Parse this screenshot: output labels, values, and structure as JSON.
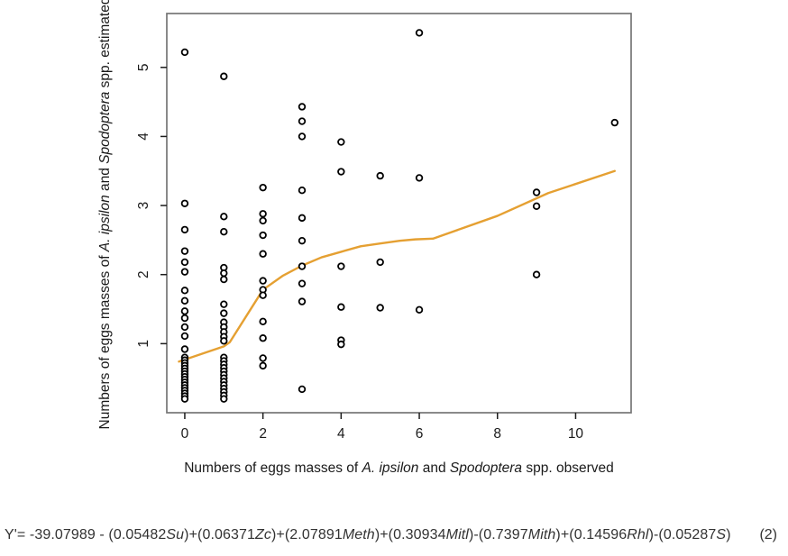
{
  "figure": {
    "background": "#ffffff",
    "frame_color": "#757575",
    "tick_color": "#1c1c1c",
    "text_color": "#1a1a1a",
    "point_color": "#000000",
    "point_fill": "#ffffff",
    "line_color": "#E5A032",
    "formula_color": "#333333"
  },
  "chart_data": {
    "type": "scatter",
    "title": "",
    "xlabel_segments": [
      {
        "text": "Numbers of eggs masses of ",
        "italic": false
      },
      {
        "text": "A. ipsilon",
        "italic": true
      },
      {
        "text": " and ",
        "italic": false
      },
      {
        "text": "Spodoptera",
        "italic": true
      },
      {
        "text": " spp. observed",
        "italic": false
      }
    ],
    "ylabel_segments": [
      {
        "text": "Numbers of eggs masses of ",
        "italic": false
      },
      {
        "text": "A. ipsilon",
        "italic": true
      },
      {
        "text": " and ",
        "italic": false
      },
      {
        "text": "Spodoptera",
        "italic": true
      },
      {
        "text": " spp. estimated",
        "italic": false
      }
    ],
    "x_ticks": [
      0,
      2,
      4,
      6,
      8,
      10
    ],
    "y_ticks": [
      1,
      2,
      3,
      4,
      5
    ],
    "xlim": [
      -0.46,
      11.42
    ],
    "ylim": [
      0,
      5.78
    ],
    "grid": false,
    "legend": "none",
    "points": [
      [
        0,
        5.22
      ],
      [
        0,
        3.03
      ],
      [
        0,
        2.65
      ],
      [
        0,
        2.34
      ],
      [
        0,
        2.18
      ],
      [
        0,
        2.04
      ],
      [
        0,
        1.77
      ],
      [
        0,
        1.62
      ],
      [
        0,
        1.47
      ],
      [
        0,
        1.37
      ],
      [
        0,
        1.24
      ],
      [
        0,
        1.11
      ],
      [
        0,
        0.92
      ],
      [
        0,
        0.8
      ],
      [
        0,
        0.76
      ],
      [
        0,
        0.72
      ],
      [
        0,
        0.68
      ],
      [
        0,
        0.64
      ],
      [
        0,
        0.6
      ],
      [
        0,
        0.56
      ],
      [
        0,
        0.52
      ],
      [
        0,
        0.48
      ],
      [
        0,
        0.44
      ],
      [
        0,
        0.4
      ],
      [
        0,
        0.36
      ],
      [
        0,
        0.32
      ],
      [
        0,
        0.28
      ],
      [
        0,
        0.24
      ],
      [
        0,
        0.2
      ],
      [
        1,
        4.87
      ],
      [
        1,
        2.84
      ],
      [
        1,
        2.62
      ],
      [
        1,
        2.1
      ],
      [
        1,
        2.02
      ],
      [
        1,
        1.93
      ],
      [
        1,
        1.57
      ],
      [
        1,
        1.44
      ],
      [
        1,
        1.31
      ],
      [
        1,
        1.24
      ],
      [
        1,
        1.17
      ],
      [
        1,
        1.1
      ],
      [
        1,
        1.04
      ],
      [
        1,
        0.8
      ],
      [
        1,
        0.75
      ],
      [
        1,
        0.7
      ],
      [
        1,
        0.65
      ],
      [
        1,
        0.6
      ],
      [
        1,
        0.55
      ],
      [
        1,
        0.5
      ],
      [
        1,
        0.45
      ],
      [
        1,
        0.4
      ],
      [
        1,
        0.35
      ],
      [
        1,
        0.3
      ],
      [
        1,
        0.25
      ],
      [
        1,
        0.2
      ],
      [
        2,
        3.26
      ],
      [
        2,
        2.88
      ],
      [
        2,
        2.78
      ],
      [
        2,
        2.57
      ],
      [
        2,
        2.3
      ],
      [
        2,
        1.91
      ],
      [
        2,
        1.78
      ],
      [
        2,
        1.7
      ],
      [
        2,
        1.32
      ],
      [
        2,
        1.08
      ],
      [
        2,
        0.79
      ],
      [
        2,
        0.68
      ],
      [
        3,
        4.43
      ],
      [
        3,
        4.22
      ],
      [
        3,
        4.0
      ],
      [
        3,
        3.22
      ],
      [
        3,
        2.82
      ],
      [
        3,
        2.49
      ],
      [
        3,
        2.12
      ],
      [
        3,
        1.87
      ],
      [
        3,
        1.61
      ],
      [
        3,
        0.34
      ],
      [
        4,
        3.92
      ],
      [
        4,
        3.49
      ],
      [
        4,
        2.12
      ],
      [
        4,
        1.53
      ],
      [
        4,
        1.05
      ],
      [
        4,
        0.99
      ],
      [
        5,
        3.43
      ],
      [
        5,
        2.18
      ],
      [
        5,
        1.52
      ],
      [
        6,
        5.5
      ],
      [
        6,
        3.4
      ],
      [
        6,
        1.49
      ],
      [
        9,
        3.19
      ],
      [
        9,
        2.99
      ],
      [
        9,
        2.0
      ],
      [
        11,
        4.2
      ]
    ],
    "trend_line": [
      [
        -0.15,
        0.74
      ],
      [
        1,
        0.96
      ],
      [
        1.15,
        1.02
      ],
      [
        2,
        1.78
      ],
      [
        2.5,
        1.98
      ],
      [
        3,
        2.13
      ],
      [
        3.5,
        2.25
      ],
      [
        4,
        2.33
      ],
      [
        4.5,
        2.41
      ],
      [
        5,
        2.45
      ],
      [
        5.5,
        2.49
      ],
      [
        5.9,
        2.51
      ],
      [
        6.35,
        2.52
      ],
      [
        8,
        2.85
      ],
      [
        9.3,
        3.18
      ],
      [
        11,
        3.5
      ]
    ]
  },
  "formula": {
    "segments": [
      {
        "text": "Y'= -39.07989 - (0.05482",
        "italic": false
      },
      {
        "text": "Su",
        "italic": true
      },
      {
        "text": ")+(0.06371",
        "italic": false
      },
      {
        "text": "Zc",
        "italic": true
      },
      {
        "text": ")+(2.07891",
        "italic": false
      },
      {
        "text": "Meth",
        "italic": true
      },
      {
        "text": ")+(0.30934",
        "italic": false
      },
      {
        "text": "Mitl",
        "italic": true
      },
      {
        "text": ")-(0.7397",
        "italic": false
      },
      {
        "text": "Mith",
        "italic": true
      },
      {
        "text": ")+(0.14596",
        "italic": false
      },
      {
        "text": "Rhl",
        "italic": true
      },
      {
        "text": ")-(0.05287",
        "italic": false
      },
      {
        "text": "S",
        "italic": true
      },
      {
        "text": ")",
        "italic": false
      }
    ],
    "equation_number": "(2)"
  }
}
